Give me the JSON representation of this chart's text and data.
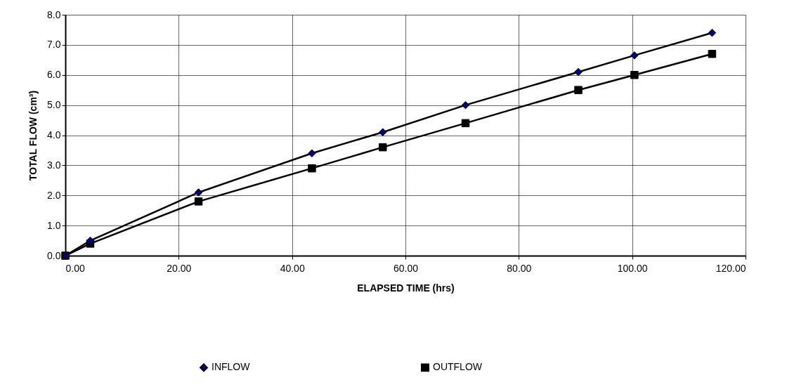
{
  "chart_data": {
    "type": "line",
    "xlabel": "ELAPSED TIME (hrs)",
    "ylabel": "TOTAL FLOW (cm³)",
    "xlim": [
      0,
      120
    ],
    "ylim": [
      0,
      8
    ],
    "xticks": [
      {
        "value": 0,
        "label": "0.00"
      },
      {
        "value": 20,
        "label": "20.00"
      },
      {
        "value": 40,
        "label": "40.00"
      },
      {
        "value": 60,
        "label": "60.00"
      },
      {
        "value": 80,
        "label": "80.00"
      },
      {
        "value": 100,
        "label": "100.00"
      },
      {
        "value": 120,
        "label": "120.00"
      }
    ],
    "yticks": [
      {
        "value": 0,
        "label": "0.0"
      },
      {
        "value": 1,
        "label": "1.0"
      },
      {
        "value": 2,
        "label": "2.0"
      },
      {
        "value": 3,
        "label": "3.0"
      },
      {
        "value": 4,
        "label": "4.0"
      },
      {
        "value": 5,
        "label": "5.0"
      },
      {
        "value": 6,
        "label": "6.0"
      },
      {
        "value": 7,
        "label": "7.0"
      },
      {
        "value": 8,
        "label": "8.0"
      }
    ],
    "x": [
      0,
      4.4,
      23.5,
      43.5,
      56.0,
      70.6,
      90.5,
      100.4,
      114.1
    ],
    "series": [
      {
        "name": "INFLOW",
        "color": "#000080",
        "marker": "diamond",
        "values": [
          0,
          0.5,
          2.1,
          3.4,
          4.1,
          5.0,
          6.1,
          6.65,
          7.4
        ]
      },
      {
        "name": "OUTFLOW",
        "color": "#000000",
        "marker": "square",
        "values": [
          0,
          0.4,
          1.8,
          2.9,
          3.6,
          4.4,
          5.5,
          6.0,
          6.7
        ]
      }
    ],
    "grid": true,
    "legend": "bottom",
    "line_style": "solid"
  }
}
